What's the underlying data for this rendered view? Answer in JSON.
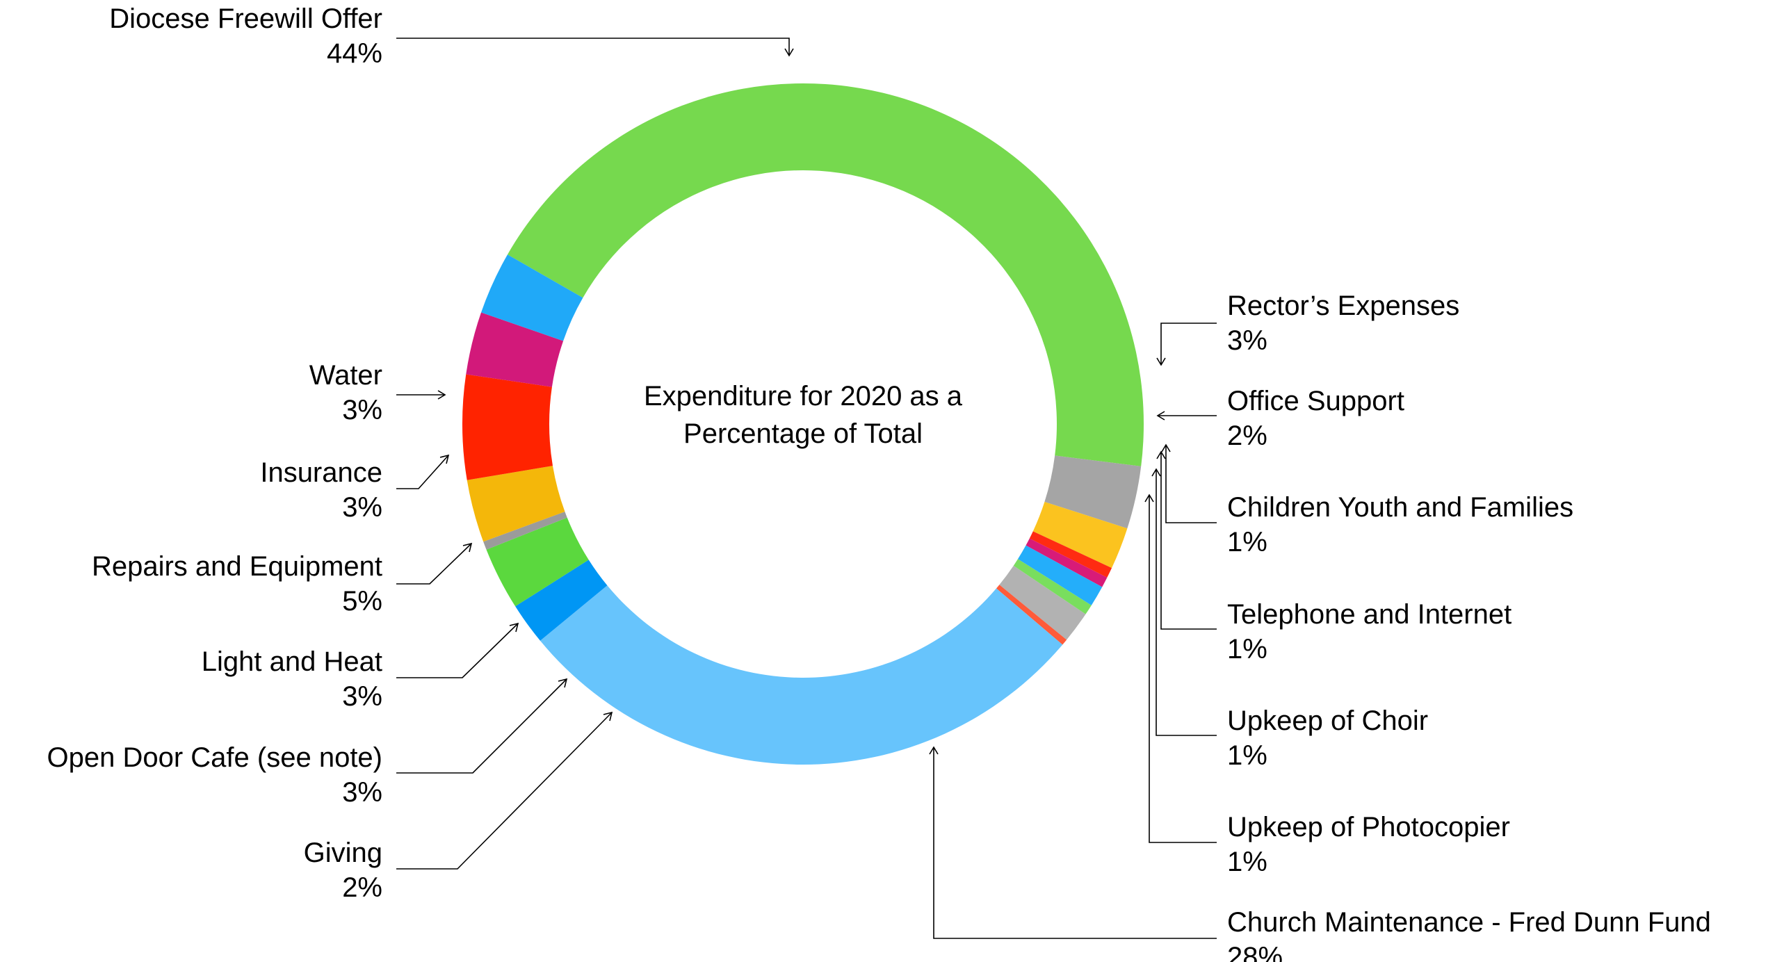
{
  "chart_data": {
    "type": "pie",
    "variant": "donut",
    "title": "Expenditure for 2020 as a Percentage of Total",
    "title_lines": [
      "Expenditure for 2020 as a",
      "Percentage of Total"
    ],
    "slices": [
      {
        "label": "Diocese Freewill Offer",
        "value": 44,
        "display": "44%",
        "color": "#76D94E"
      },
      {
        "label": "Rector’s Expenses",
        "value": 3,
        "display": "3%",
        "color": "#A5A5A5"
      },
      {
        "label": "Office Support",
        "value": 2,
        "display": "2%",
        "color": "#FBC31F"
      },
      {
        "label": "",
        "value": 0.5,
        "display": "",
        "color": "#FF2B12"
      },
      {
        "label": "Children Youth and Families",
        "value": 0.5,
        "display": "1%",
        "color": "#D81B78"
      },
      {
        "label": "Telephone and Internet",
        "value": 1,
        "display": "1%",
        "color": "#24AEFA"
      },
      {
        "label": "Upkeep of Choir",
        "value": 0.5,
        "display": "1%",
        "color": "#79DE5E"
      },
      {
        "label": "Upkeep of Photocopier",
        "value": 1.5,
        "display": "1%",
        "color": "#B2B2B2"
      },
      {
        "label": "",
        "value": 0.3,
        "display": "",
        "color": "#FF5B3A"
      },
      {
        "label": "Church Maintenance - Fred Dunn Fund",
        "value": 28,
        "display": "28%",
        "color": "#67C4FC"
      },
      {
        "label": "Giving",
        "value": 2,
        "display": "2%",
        "color": "#0096F4"
      },
      {
        "label": "Open Door Cafe (see note)",
        "value": 3,
        "display": "3%",
        "color": "#5BD83E"
      },
      {
        "label": "",
        "value": 0.4,
        "display": "",
        "color": "#9B9B9B"
      },
      {
        "label": "Light and Heat",
        "value": 3,
        "display": "3%",
        "color": "#F4B70A"
      },
      {
        "label": "Repairs and Equipment",
        "value": 5,
        "display": "5%",
        "color": "#FF2300"
      },
      {
        "label": "Insurance",
        "value": 3,
        "display": "3%",
        "color": "#D2197A"
      },
      {
        "label": "Water",
        "value": 3,
        "display": "3%",
        "color": "#20A9F8"
      }
    ],
    "legend": "none",
    "labels": "outside with leader lines"
  }
}
